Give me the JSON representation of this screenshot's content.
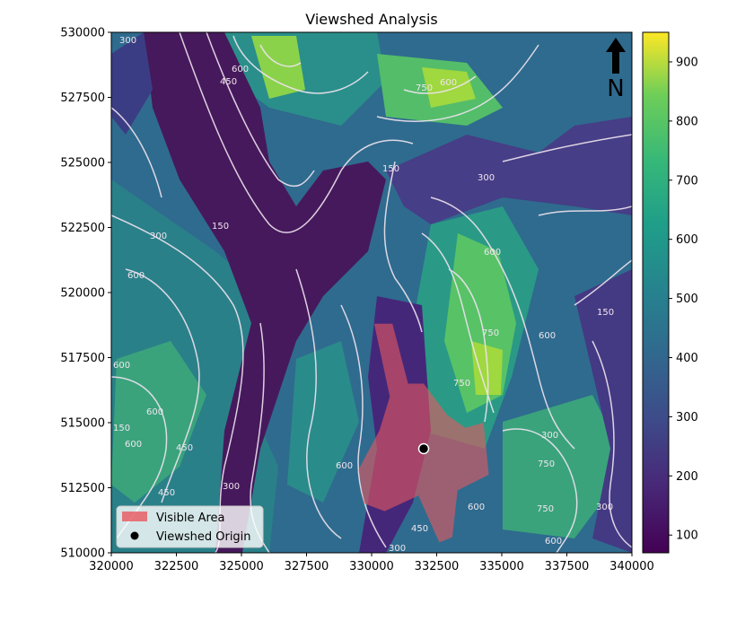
{
  "title": "Viewshed Analysis",
  "north_arrow": {
    "label": "N",
    "icon": "north-arrow-icon"
  },
  "x_axis": {
    "min": 320000,
    "max": 340000,
    "ticks": [
      "320000",
      "322500",
      "325000",
      "327500",
      "330000",
      "332500",
      "335000",
      "337500",
      "340000"
    ]
  },
  "y_axis": {
    "min": 510000,
    "max": 530000,
    "ticks": [
      "510000",
      "512500",
      "515000",
      "517500",
      "520000",
      "522500",
      "525000",
      "527500",
      "530000"
    ]
  },
  "colorbar": {
    "min": 70,
    "max": 950,
    "colormap": "viridis",
    "ticks": [
      "100",
      "200",
      "300",
      "400",
      "500",
      "600",
      "700",
      "800",
      "900"
    ]
  },
  "legend": {
    "items": [
      {
        "label": "Visible Area",
        "color": "#e8585f",
        "icon": "red-patch-icon"
      },
      {
        "label": "Viewshed Origin",
        "color": "#000000",
        "icon": "black-dot-icon"
      }
    ]
  },
  "viewshed_origin": {
    "x": 332000,
    "y": 514000
  },
  "contour_levels": [
    "150",
    "300",
    "450",
    "600",
    "750"
  ],
  "chart_data": {
    "type": "heatmap",
    "title": "Viewshed Analysis",
    "xlim": [
      320000,
      340000
    ],
    "ylim": [
      510000,
      530000
    ],
    "colorbar_range": [
      70,
      950
    ],
    "contour_levels": [
      150,
      300,
      450,
      600,
      750
    ],
    "series": [
      {
        "name": "Visible Area",
        "type": "polygon",
        "points": [
          [
            330100,
            518800
          ],
          [
            330800,
            518800
          ],
          [
            331400,
            516500
          ],
          [
            332000,
            516500
          ],
          [
            332900,
            515300
          ],
          [
            333600,
            514800
          ],
          [
            334300,
            515000
          ],
          [
            334500,
            513000
          ],
          [
            333300,
            512400
          ],
          [
            333100,
            510600
          ],
          [
            332600,
            510400
          ],
          [
            331800,
            512200
          ],
          [
            330500,
            511600
          ],
          [
            329700,
            511900
          ],
          [
            329500,
            513200
          ],
          [
            330300,
            514700
          ],
          [
            330700,
            516000
          ]
        ]
      },
      {
        "name": "Viewshed Origin",
        "type": "point",
        "x": 332000,
        "y": 514000
      }
    ]
  }
}
